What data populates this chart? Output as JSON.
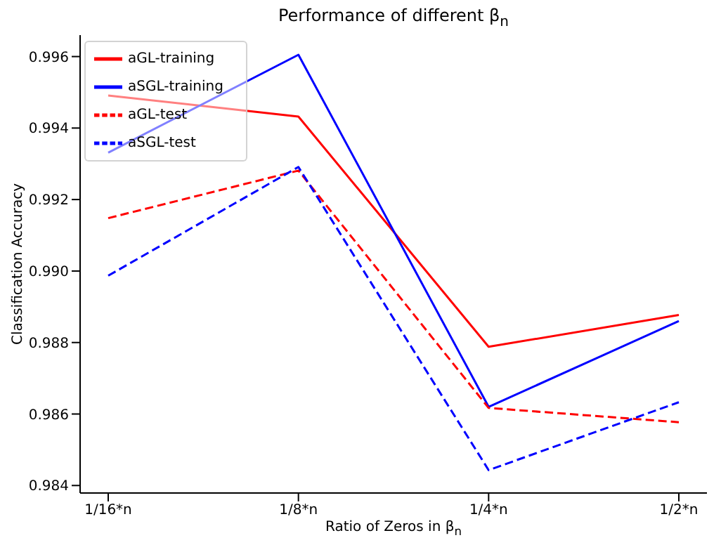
{
  "chart_data": {
    "type": "line",
    "title": "Performance of different β$_{n}$",
    "xlabel": "Ratio of Zeros in β$_{n}$",
    "ylabel": "Classification Accuracy",
    "categories": [
      "1/16*n",
      "1/8*n",
      "1/4*n",
      "1/2*n"
    ],
    "series": [
      {
        "name": "aGL-training",
        "color": "#ff0000",
        "line_style": "solid",
        "values": [
          0.99491,
          0.99432,
          0.98788,
          0.98877
        ]
      },
      {
        "name": "aSGL-training",
        "color": "#0000ff",
        "line_style": "solid",
        "values": [
          0.99331,
          0.99605,
          0.9862,
          0.9886
        ]
      },
      {
        "name": "aGL-test",
        "color": "#ff0000",
        "line_style": "dashed",
        "values": [
          0.99148,
          0.99281,
          0.98617,
          0.98577
        ]
      },
      {
        "name": "aSGL-test",
        "color": "#0000ff",
        "line_style": "dashed",
        "values": [
          0.98987,
          0.99291,
          0.98443,
          0.98633
        ]
      }
    ],
    "ylim": [
      0.98379,
      0.9966
    ],
    "yticks": [
      {
        "value": 0.984,
        "label": "0.984"
      },
      {
        "value": 0.986,
        "label": "0.986"
      },
      {
        "value": 0.988,
        "label": "0.988"
      },
      {
        "value": 0.99,
        "label": "0.990"
      },
      {
        "value": 0.992,
        "label": "0.992"
      },
      {
        "value": 0.994,
        "label": "0.994"
      },
      {
        "value": 0.996,
        "label": "0.996"
      }
    ],
    "grid": false,
    "legend": "top left",
    "marker": "none"
  }
}
